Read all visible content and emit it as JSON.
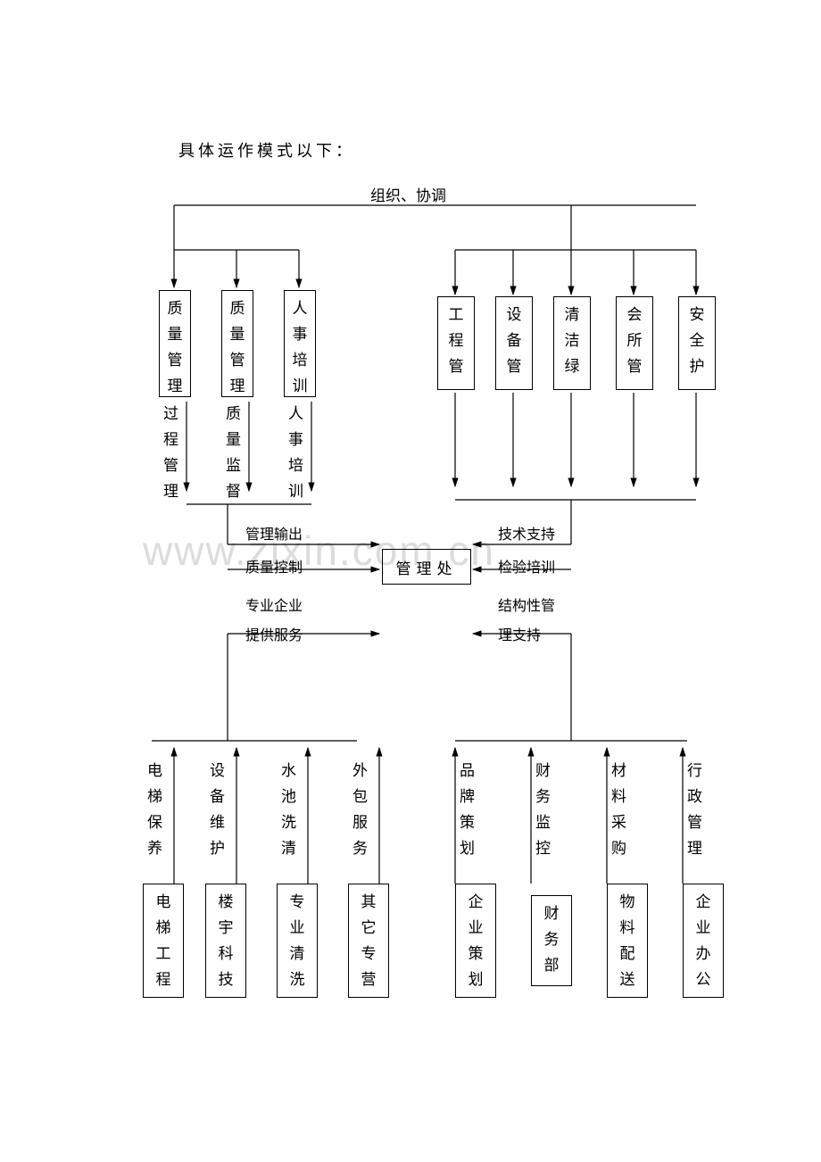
{
  "title": "具体运作模式以下：",
  "top_label": "组织、协调",
  "center_box": "管理处",
  "watermark": "www.zixin.com.cn",
  "colors": {
    "line": "#000000",
    "text": "#000000",
    "bg": "#ffffff",
    "watermark": "#dcdcdc"
  },
  "layout": {
    "line_width": 1.2,
    "arrow_size": 8,
    "font_family": "SimSun"
  },
  "top_left_boxes": [
    {
      "box": "质量管理",
      "below": "过程管理"
    },
    {
      "box": "质量管理",
      "below": "质量监督"
    },
    {
      "box": "人事培训",
      "below": "人事培训"
    }
  ],
  "top_right_boxes": [
    {
      "box": "工程管"
    },
    {
      "box": "设备管"
    },
    {
      "box": "清洁绿"
    },
    {
      "box": "会所管"
    },
    {
      "box": "安全护"
    }
  ],
  "mid_left_labels": [
    "管理输出",
    "质量控制"
  ],
  "mid_right_labels": [
    "技术支持",
    "检验培训"
  ],
  "lower_left_labels": [
    "专业企业",
    "提供服务"
  ],
  "lower_right_labels": [
    "结构性管",
    "理支持"
  ],
  "bottom_left_cols": [
    {
      "above": "电梯保养",
      "box": "电梯工程"
    },
    {
      "above": "设备维护",
      "box": "楼宇科技"
    },
    {
      "above": "水池洗清",
      "box": "专业清洗"
    },
    {
      "above": "外包服务",
      "box": "其它专营"
    }
  ],
  "bottom_right_cols": [
    {
      "above": "品牌策划",
      "box": "企业策划"
    },
    {
      "above": "财务监控",
      "box": "财务部"
    },
    {
      "above": "材料采购",
      "box": "物料配送"
    },
    {
      "above": "行政管理",
      "box": "企业办公"
    }
  ]
}
